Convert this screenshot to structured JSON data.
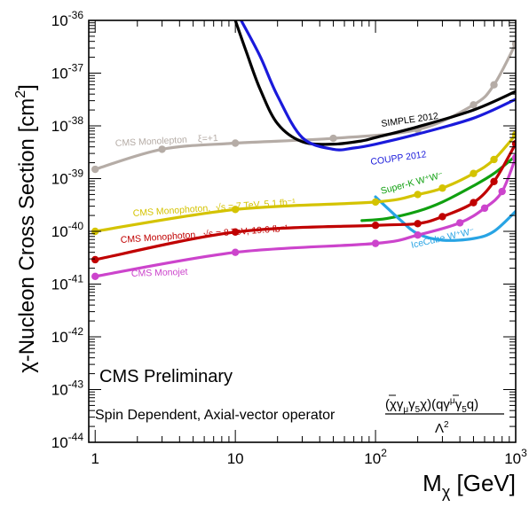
{
  "chart_data": {
    "type": "line",
    "x_scale": "log",
    "y_scale": "log",
    "xlim": [
      0.9,
      1000
    ],
    "ylim": [
      1e-44,
      1e-36
    ],
    "xlabel": {
      "main": "M",
      "sub": "χ",
      "unit": " [GeV]"
    },
    "ylabel": {
      "main": "χ-Nucleon Cross Section [cm",
      "sup": "2",
      "close": "]"
    },
    "x_ticks": [
      {
        "value": 1,
        "label": "1"
      },
      {
        "value": 10,
        "label": "10"
      },
      {
        "value": 100,
        "base": "10",
        "exp": "2"
      },
      {
        "value": 1000,
        "base": "10",
        "exp": "3"
      }
    ],
    "y_ticks": [
      {
        "value": 1e-44,
        "base": "10",
        "exp": "-44"
      },
      {
        "value": 1e-43,
        "base": "10",
        "exp": "-43"
      },
      {
        "value": 1e-42,
        "base": "10",
        "exp": "-42"
      },
      {
        "value": 1e-41,
        "base": "10",
        "exp": "-41"
      },
      {
        "value": 1e-40,
        "base": "10",
        "exp": "-40"
      },
      {
        "value": 1e-39,
        "base": "10",
        "exp": "-39"
      },
      {
        "value": 1e-38,
        "base": "10",
        "exp": "-38"
      },
      {
        "value": 1e-37,
        "base": "10",
        "exp": "-37"
      },
      {
        "value": 1e-36,
        "base": "10",
        "exp": "-36"
      }
    ],
    "annotations": {
      "preliminary": "CMS Preliminary",
      "operator_text": "Spin Dependent, Axial-vector operator",
      "formula": "(χγμγ5χ)(qγμγ5q) / Λ²"
    },
    "series": [
      {
        "name": "CMS Monolepton",
        "tag": "ξ=+1",
        "color": "#b5aca6",
        "markers": true,
        "points": [
          [
            1,
            1.5e-39
          ],
          [
            3,
            3.6e-39
          ],
          [
            10,
            4.7e-39
          ],
          [
            50,
            5.8e-39
          ],
          [
            200,
            8.5e-39
          ],
          [
            500,
            2.5e-38
          ],
          [
            700,
            6e-38
          ],
          [
            1000,
            3.6e-37
          ]
        ]
      },
      {
        "name": "SIMPLE 2012",
        "color": "#000000",
        "markers": false,
        "points": [
          [
            10,
            1e-36
          ],
          [
            12,
            2.5e-37
          ],
          [
            15,
            5e-38
          ],
          [
            20,
            1.1e-38
          ],
          [
            30,
            5e-39
          ],
          [
            50,
            4.5e-39
          ],
          [
            80,
            5.2e-39
          ],
          [
            100,
            6e-39
          ],
          [
            200,
            9.6e-39
          ],
          [
            500,
            2e-38
          ],
          [
            1000,
            4.5e-38
          ]
        ]
      },
      {
        "name": "COUPP 2012",
        "color": "#1a1adb",
        "markers": false,
        "points": [
          [
            11,
            1e-36
          ],
          [
            15,
            2.1e-37
          ],
          [
            20,
            3.7e-38
          ],
          [
            30,
            6e-39
          ],
          [
            50,
            3.6e-39
          ],
          [
            70,
            3.8e-39
          ],
          [
            100,
            4.5e-39
          ],
          [
            200,
            7e-39
          ],
          [
            500,
            1.4e-38
          ],
          [
            1000,
            3.2e-38
          ]
        ]
      },
      {
        "name": "Super-K W⁺W⁻",
        "color": "#10a010",
        "markers": false,
        "points": [
          [
            80,
            1.6e-40
          ],
          [
            120,
            1.75e-40
          ],
          [
            200,
            2.4e-40
          ],
          [
            300,
            3.6e-40
          ],
          [
            500,
            7.3e-40
          ],
          [
            700,
            1.25e-39
          ],
          [
            1000,
            2.7e-39
          ]
        ]
      },
      {
        "name": "IceCube W⁺W⁻",
        "color": "#28a4e4",
        "markers": false,
        "points": [
          [
            100,
            4.5e-40
          ],
          [
            150,
            1.65e-40
          ],
          [
            200,
            9e-41
          ],
          [
            300,
            6.8e-41
          ],
          [
            500,
            7.3e-41
          ],
          [
            700,
            1e-40
          ],
          [
            1000,
            2.4e-40
          ]
        ]
      },
      {
        "name": "CMS Monophoton,",
        "energy": "√s = 7 TeV, 5.1 fb⁻¹",
        "color": "#d4c300",
        "markers": true,
        "points": [
          [
            1,
            1e-40
          ],
          [
            10,
            2.6e-40
          ],
          [
            100,
            3.6e-40
          ],
          [
            200,
            5e-40
          ],
          [
            300,
            6.6e-40
          ],
          [
            500,
            1.25e-39
          ],
          [
            700,
            2.3e-39
          ],
          [
            1000,
            6.8e-39
          ]
        ]
      },
      {
        "name": "CMS Monophoton,",
        "energy": "√s = 8 TeV, 19.6 fb⁻¹",
        "color": "#c00000",
        "markers": true,
        "points": [
          [
            1,
            2.9e-41
          ],
          [
            10,
            9.7e-41
          ],
          [
            100,
            1.3e-40
          ],
          [
            200,
            1.4e-40
          ],
          [
            300,
            1.9e-40
          ],
          [
            500,
            3.5e-40
          ],
          [
            700,
            8.8e-40
          ],
          [
            1000,
            4.6e-39
          ]
        ]
      },
      {
        "name": "CMS Monojet",
        "color": "#cc44cc",
        "markers": true,
        "points": [
          [
            1,
            1.4e-41
          ],
          [
            10,
            4e-41
          ],
          [
            100,
            5.9e-41
          ],
          [
            200,
            8.5e-41
          ],
          [
            400,
            1.45e-40
          ],
          [
            600,
            2.75e-40
          ],
          [
            800,
            5.7e-40
          ],
          [
            1000,
            2.5e-39
          ]
        ]
      }
    ]
  }
}
